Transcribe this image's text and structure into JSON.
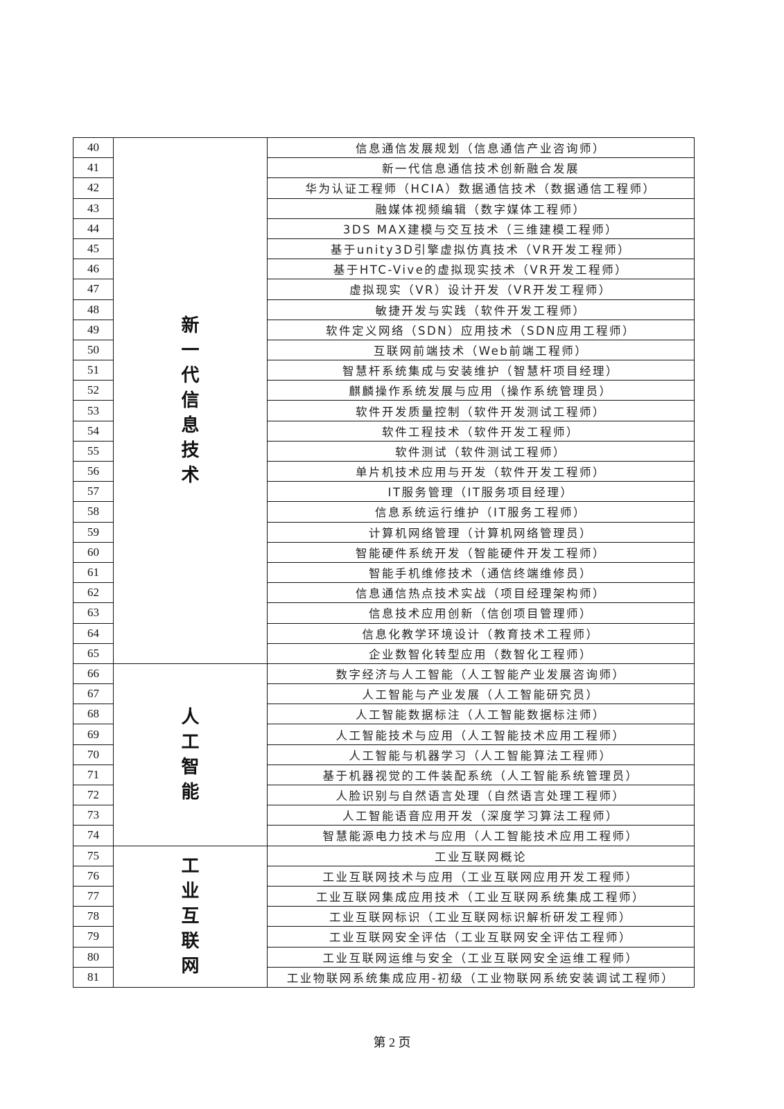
{
  "groups": [
    {
      "category": "新一代信息技术",
      "rows": [
        {
          "no": "40",
          "course": "信息通信发展规划（信息通信产业咨询师）"
        },
        {
          "no": "41",
          "course": "新一代信息通信技术创新融合发展"
        },
        {
          "no": "42",
          "course": "华为认证工程师（HCIA）数据通信技术（数据通信工程师）"
        },
        {
          "no": "43",
          "course": "融媒体视频编辑（数字媒体工程师）"
        },
        {
          "no": "44",
          "course": "3DS MAX建模与交互技术（三维建模工程师）"
        },
        {
          "no": "45",
          "course": "基于unity3D引擎虚拟仿真技术（VR开发工程师）"
        },
        {
          "no": "46",
          "course": "基于HTC-Vive的虚拟现实技术（VR开发工程师）"
        },
        {
          "no": "47",
          "course": "虚拟现实（VR）设计开发（VR开发工程师）"
        },
        {
          "no": "48",
          "course": "敏捷开发与实践（软件开发工程师）"
        },
        {
          "no": "49",
          "course": "软件定义网络（SDN）应用技术（SDN应用工程师）"
        },
        {
          "no": "50",
          "course": "互联网前端技术（Web前端工程师）"
        },
        {
          "no": "51",
          "course": "智慧杆系统集成与安装维护（智慧杆项目经理）"
        },
        {
          "no": "52",
          "course": "麒麟操作系统发展与应用（操作系统管理员）"
        },
        {
          "no": "53",
          "course": "软件开发质量控制（软件开发测试工程师）"
        },
        {
          "no": "54",
          "course": "软件工程技术（软件开发工程师）"
        },
        {
          "no": "55",
          "course": "软件测试（软件测试工程师）"
        },
        {
          "no": "56",
          "course": "单片机技术应用与开发（软件开发工程师）"
        },
        {
          "no": "57",
          "course": "IT服务管理（IT服务项目经理）"
        },
        {
          "no": "58",
          "course": "信息系统运行维护（IT服务工程师）"
        },
        {
          "no": "59",
          "course": "计算机网络管理（计算机网络管理员）"
        },
        {
          "no": "60",
          "course": "智能硬件系统开发（智能硬件开发工程师）"
        },
        {
          "no": "61",
          "course": "智能手机维修技术（通信终端维修员）"
        },
        {
          "no": "62",
          "course": "信息通信热点技术实战（项目经理架构师）"
        },
        {
          "no": "63",
          "course": "信息技术应用创新（信创项目管理师）"
        },
        {
          "no": "64",
          "course": "信息化教学环境设计（教育技术工程师）"
        },
        {
          "no": "65",
          "course": "企业数智化转型应用（数智化工程师）"
        }
      ]
    },
    {
      "category": "人工智能",
      "rows": [
        {
          "no": "66",
          "course": "数字经济与人工智能（人工智能产业发展咨询师）"
        },
        {
          "no": "67",
          "course": "人工智能与产业发展（人工智能研究员）"
        },
        {
          "no": "68",
          "course": "人工智能数据标注（人工智能数据标注师）"
        },
        {
          "no": "69",
          "course": "人工智能技术与应用（人工智能技术应用工程师）"
        },
        {
          "no": "70",
          "course": "人工智能与机器学习（人工智能算法工程师）"
        },
        {
          "no": "71",
          "course": "基于机器视觉的工件装配系统（人工智能系统管理员）"
        },
        {
          "no": "72",
          "course": "人脸识别与自然语言处理（自然语言处理工程师）"
        },
        {
          "no": "73",
          "course": "人工智能语音应用开发（深度学习算法工程师）"
        },
        {
          "no": "74",
          "course": "智慧能源电力技术与应用（人工智能技术应用工程师）"
        }
      ]
    },
    {
      "category": "工业互联网",
      "rows": [
        {
          "no": "75",
          "course": "工业互联网概论"
        },
        {
          "no": "76",
          "course": "工业互联网技术与应用（工业互联网应用开发工程师）"
        },
        {
          "no": "77",
          "course": "工业互联网集成应用技术（工业互联网系统集成工程师）"
        },
        {
          "no": "78",
          "course": "工业互联网标识（工业互联网标识解析研发工程师）"
        },
        {
          "no": "79",
          "course": "工业互联网安全评估（工业互联网安全评估工程师）"
        },
        {
          "no": "80",
          "course": "工业互联网运维与安全（工业互联网安全运维工程师）"
        },
        {
          "no": "81",
          "course": "工业物联网系统集成应用-初级（工业物联网系统安装调试工程师）"
        }
      ]
    }
  ],
  "footer": {
    "page_label": "第 2 页"
  }
}
